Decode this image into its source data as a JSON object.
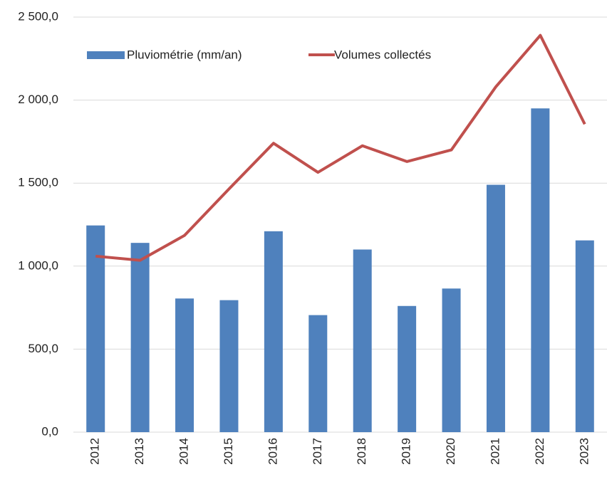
{
  "chart_data": {
    "type": "bar-line",
    "categories": [
      "2012",
      "2013",
      "2014",
      "2015",
      "2016",
      "2017",
      "2018",
      "2019",
      "2020",
      "2021",
      "2022",
      "2023"
    ],
    "series": [
      {
        "name": "Pluviométrie (mm/an)",
        "type": "bar",
        "color": "#4f81bd",
        "values": [
          1245,
          1140,
          805,
          795,
          1210,
          705,
          1100,
          760,
          865,
          1490,
          1950,
          1155
        ]
      },
      {
        "name": "Volumes collectés",
        "type": "line",
        "color": "#c0504d",
        "values": [
          1060,
          1035,
          1185,
          1465,
          1740,
          1565,
          1725,
          1630,
          1700,
          2080,
          2390,
          1855
        ]
      }
    ],
    "ylim": [
      0,
      2500
    ],
    "yticks": [
      {
        "value": 0,
        "label": "0,0"
      },
      {
        "value": 500,
        "label": "500,0"
      },
      {
        "value": 1000,
        "label": "1 000,0"
      },
      {
        "value": 1500,
        "label": "1 500,0"
      },
      {
        "value": 2000,
        "label": "2 000,0"
      },
      {
        "value": 2500,
        "label": "2 500,0"
      }
    ],
    "grid": true,
    "legend": "top"
  }
}
